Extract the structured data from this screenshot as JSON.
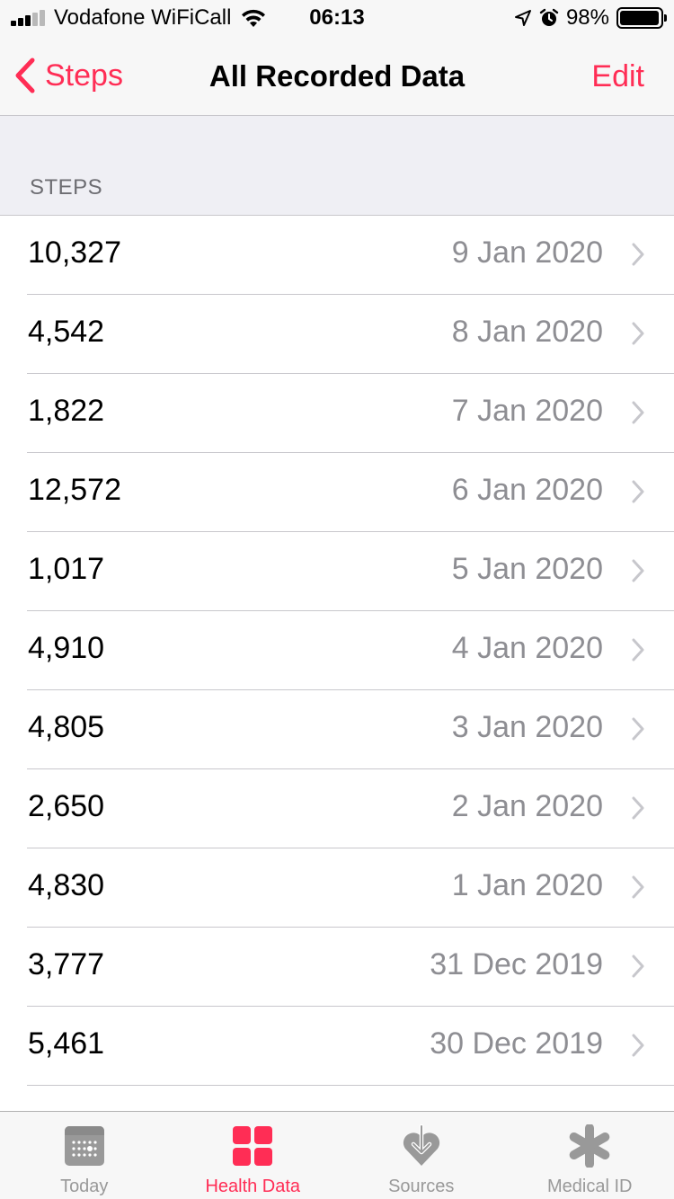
{
  "status_bar": {
    "carrier": "Vodafone WiFiCall",
    "time": "06:13",
    "battery_percent_label": "98%",
    "battery_level": 0.98
  },
  "nav": {
    "back_label": "Steps",
    "title": "All Recorded Data",
    "edit_label": "Edit"
  },
  "section": {
    "title": "STEPS"
  },
  "records": [
    {
      "value": "10,327",
      "date": "9 Jan 2020"
    },
    {
      "value": "4,542",
      "date": "8 Jan 2020"
    },
    {
      "value": "1,822",
      "date": "7 Jan 2020"
    },
    {
      "value": "12,572",
      "date": "6 Jan 2020"
    },
    {
      "value": "1,017",
      "date": "5 Jan 2020"
    },
    {
      "value": "4,910",
      "date": "4 Jan 2020"
    },
    {
      "value": "4,805",
      "date": "3 Jan 2020"
    },
    {
      "value": "2,650",
      "date": "2 Jan 2020"
    },
    {
      "value": "4,830",
      "date": "1 Jan 2020"
    },
    {
      "value": "3,777",
      "date": "31 Dec 2019"
    },
    {
      "value": "5,461",
      "date": "30 Dec 2019"
    }
  ],
  "tabs": [
    {
      "label": "Today",
      "icon": "calendar-icon",
      "active": false
    },
    {
      "label": "Health Data",
      "icon": "health-data-grid-icon",
      "active": true
    },
    {
      "label": "Sources",
      "icon": "sources-heart-icon",
      "active": false
    },
    {
      "label": "Medical ID",
      "icon": "medical-id-asterisk-icon",
      "active": false
    }
  ],
  "colors": {
    "accent": "#ff2d55",
    "secondary_text": "#8e8e93",
    "inactive_tab": "#999999",
    "grouped_background": "#efeff4",
    "separator": "#c8c7cc"
  }
}
